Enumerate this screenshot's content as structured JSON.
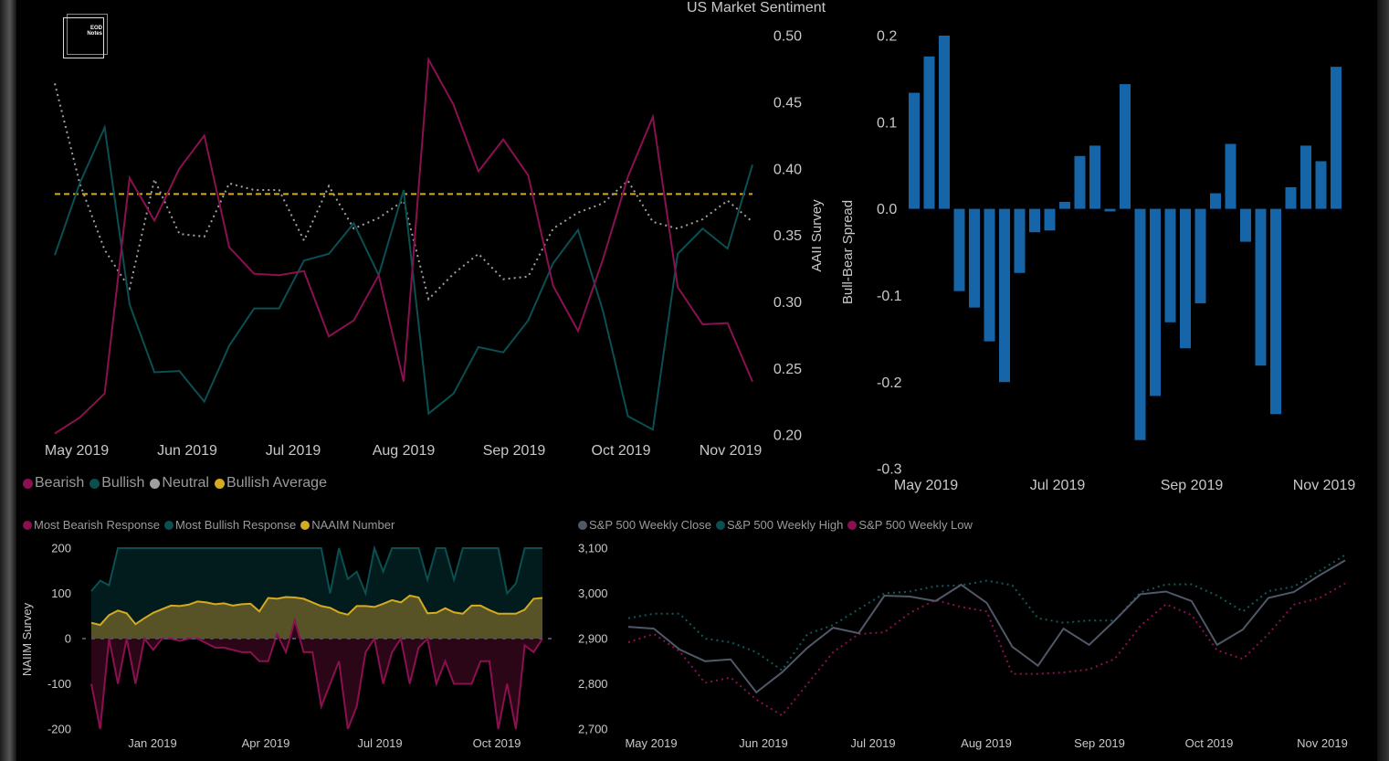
{
  "logo": {
    "line1": "EOD",
    "line2": "Notes"
  },
  "colors": {
    "bearish": "#8b1050",
    "bullish": "#0b4f51",
    "neutral": "#a0a0a0",
    "average": "#d4aa20",
    "bar": "#1565a8",
    "close": "#505868",
    "text": "#c8c8c8"
  },
  "chart_data": [
    {
      "id": "aaii",
      "type": "line",
      "title": "US Market Sentiment",
      "ylabel": "AAII Survey",
      "ylim": [
        0.2,
        0.5
      ],
      "yticks": [
        "0.50",
        "0.45",
        "0.40",
        "0.35",
        "0.30",
        "0.25",
        "0.20"
      ],
      "ytick_values": [
        0.5,
        0.45,
        0.4,
        0.35,
        0.3,
        0.25,
        0.2
      ],
      "xticks": [
        "May 2019",
        "Jun 2019",
        "Jul 2019",
        "Aug 2019",
        "Sep 2019",
        "Oct 2019",
        "Nov 2019"
      ],
      "legend": [
        "Bearish",
        "Bullish",
        "Neutral",
        "Bullish Average"
      ],
      "legend_position": "bottom-left",
      "series": [
        {
          "name": "Bearish",
          "style": "solid",
          "values": [
            0.201,
            0.213,
            0.231,
            0.393,
            0.361,
            0.4,
            0.425,
            0.341,
            0.321,
            0.32,
            0.323,
            0.274,
            0.286,
            0.32,
            0.24,
            0.482,
            0.448,
            0.398,
            0.422,
            0.395,
            0.312,
            0.278,
            0.332,
            0.394,
            0.439,
            0.311,
            0.283,
            0.284,
            0.24
          ]
        },
        {
          "name": "Bullish",
          "style": "solid",
          "values": [
            0.335,
            0.389,
            0.431,
            0.298,
            0.247,
            0.248,
            0.225,
            0.267,
            0.295,
            0.295,
            0.331,
            0.336,
            0.359,
            0.32,
            0.384,
            0.216,
            0.231,
            0.266,
            0.262,
            0.286,
            0.329,
            0.354,
            0.293,
            0.214,
            0.204,
            0.336,
            0.355,
            0.34,
            0.403
          ]
        },
        {
          "name": "Neutral",
          "style": "dotted",
          "values": [
            0.464,
            0.389,
            0.339,
            0.31,
            0.392,
            0.351,
            0.349,
            0.389,
            0.384,
            0.384,
            0.346,
            0.387,
            0.355,
            0.363,
            0.376,
            0.302,
            0.321,
            0.336,
            0.317,
            0.319,
            0.355,
            0.367,
            0.374,
            0.391,
            0.36,
            0.355,
            0.362,
            0.376,
            0.36
          ]
        },
        {
          "name": "Bullish Average",
          "style": "dashed",
          "values": [
            0.381
          ]
        }
      ]
    },
    {
      "id": "spread",
      "type": "bar",
      "ylabel": "Bull-Bear Spread",
      "ylim": [
        -0.3,
        0.2
      ],
      "yticks": [
        "0.2",
        "0.1",
        "0.0",
        "-0.1",
        "-0.2",
        "-0.3"
      ],
      "ytick_values": [
        0.2,
        0.1,
        0.0,
        -0.1,
        -0.2,
        -0.3
      ],
      "xticks": [
        "May 2019",
        "Jul 2019",
        "Sep 2019",
        "Nov 2019"
      ],
      "values": [
        0.134,
        0.176,
        0.2,
        -0.095,
        -0.114,
        -0.153,
        -0.2,
        -0.074,
        -0.027,
        -0.025,
        0.008,
        0.061,
        0.073,
        -0.003,
        0.144,
        -0.267,
        -0.216,
        -0.131,
        -0.161,
        -0.109,
        0.018,
        0.075,
        -0.038,
        -0.181,
        -0.237,
        0.025,
        0.073,
        0.055,
        0.164
      ]
    },
    {
      "id": "naaim",
      "type": "area",
      "ylabel": "NAIIM Survey",
      "ylim": [
        -200,
        200
      ],
      "yticks": [
        "200",
        "100",
        "0",
        "-100",
        "-200"
      ],
      "ytick_values": [
        200,
        100,
        0,
        -100,
        -200
      ],
      "xticks": [
        "Jan 2019",
        "Apr 2019",
        "Jul 2019",
        "Oct 2019"
      ],
      "legend": [
        "Most Bearish Response",
        "Most Bullish Response",
        "NAAIM Number"
      ],
      "legend_position": "top-left",
      "series": [
        {
          "name": "Most Bullish Response",
          "values": [
            105,
            128,
            118,
            200,
            200,
            200,
            200,
            200,
            200,
            200,
            200,
            200,
            200,
            200,
            200,
            200,
            200,
            200,
            200,
            200,
            200,
            200,
            200,
            200,
            200,
            200,
            200,
            100,
            200,
            132,
            148,
            100,
            200,
            148,
            200,
            200,
            200,
            200,
            130,
            200,
            200,
            130,
            200,
            200,
            200,
            200,
            200,
            100,
            122,
            200,
            200,
            200
          ]
        },
        {
          "name": "NAAIM Number",
          "values": [
            35,
            30,
            52,
            62,
            56,
            32,
            45,
            57,
            65,
            73,
            72,
            75,
            82,
            80,
            76,
            78,
            73,
            76,
            77,
            60,
            90,
            88,
            92,
            91,
            88,
            80,
            72,
            68,
            58,
            53,
            72,
            72,
            70,
            77,
            85,
            80,
            95,
            91,
            56,
            57,
            67,
            58,
            55,
            73,
            73,
            63,
            55,
            55,
            55,
            64,
            88,
            90
          ]
        },
        {
          "name": "Most Bearish Response",
          "values": [
            -100,
            -200,
            0,
            -100,
            0,
            -100,
            0,
            -25,
            0,
            0,
            -5,
            0,
            0,
            -10,
            -20,
            -20,
            -25,
            -30,
            -30,
            -50,
            -50,
            10,
            -30,
            40,
            -30,
            -30,
            -150,
            -100,
            -50,
            -200,
            -150,
            -30,
            0,
            -100,
            -30,
            0,
            -100,
            -20,
            0,
            -100,
            -50,
            -100,
            -100,
            -100,
            -50,
            -50,
            -200,
            -100,
            -200,
            -15,
            -30,
            0
          ]
        }
      ]
    },
    {
      "id": "sp500",
      "type": "line",
      "ylim": [
        2700,
        3100
      ],
      "yticks": [
        "3,100",
        "3,000",
        "2,900",
        "2,800",
        "2,700"
      ],
      "ytick_values": [
        3100,
        3000,
        2900,
        2800,
        2700
      ],
      "xticks": [
        "May 2019",
        "Jun 2019",
        "Jul 2019",
        "Aug 2019",
        "Sep 2019",
        "Oct 2019",
        "Nov 2019"
      ],
      "legend": [
        "S&P 500 Weekly Close",
        "S&P 500 Weekly High",
        "S&P 500 Weekly Low"
      ],
      "legend_position": "top-left",
      "series": [
        {
          "name": "S&P 500 Weekly Close",
          "style": "solid",
          "values": [
            2926,
            2922,
            2876,
            2850,
            2854,
            2781,
            2825,
            2880,
            2924,
            2912,
            2995,
            2993,
            2983,
            3019,
            2979,
            2882,
            2840,
            2922,
            2886,
            2940,
            2998,
            3004,
            2983,
            2886,
            2920,
            2990,
            3003,
            3040,
            3073
          ]
        },
        {
          "name": "S&P 500 Weekly High",
          "style": "dotted",
          "values": [
            2945,
            2955,
            2955,
            2900,
            2892,
            2870,
            2830,
            2910,
            2930,
            2965,
            3000,
            3004,
            3016,
            3018,
            3028,
            3018,
            2945,
            2935,
            2940,
            2940,
            3002,
            3020,
            3020,
            2995,
            2960,
            3005,
            3015,
            3050,
            3085
          ]
        },
        {
          "name": "S&P 500 Weekly Low",
          "style": "dotted",
          "values": [
            2892,
            2910,
            2872,
            2802,
            2814,
            2765,
            2730,
            2800,
            2870,
            2910,
            2914,
            2957,
            2985,
            2970,
            2960,
            2822,
            2822,
            2825,
            2832,
            2855,
            2928,
            2976,
            2952,
            2874,
            2855,
            2910,
            2975,
            2990,
            3022
          ]
        }
      ]
    }
  ]
}
